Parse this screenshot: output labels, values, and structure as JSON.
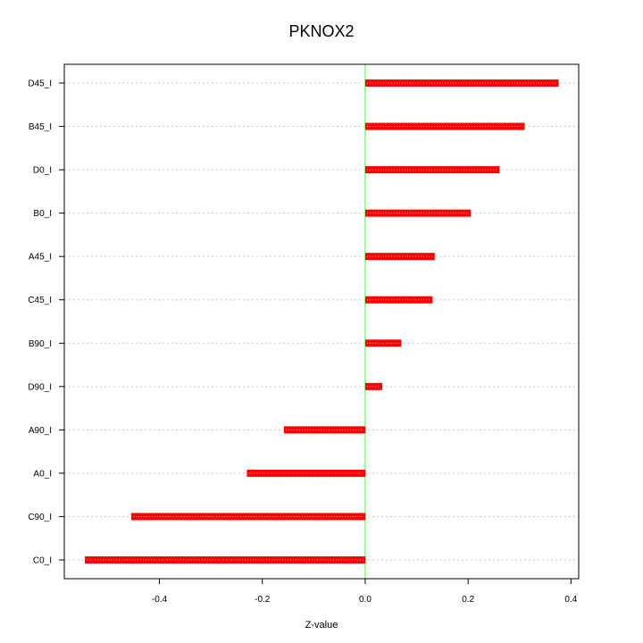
{
  "chart_data": {
    "type": "bar",
    "orientation": "horizontal",
    "title": "PKNOX2",
    "xlabel": "Z-value",
    "ylabel": "",
    "categories": [
      "D45_I",
      "B45_I",
      "D0_I",
      "B0_I",
      "A45_I",
      "C45_I",
      "B90_I",
      "D90_I",
      "A90_I",
      "A0_I",
      "C90_I",
      "C0_I"
    ],
    "values": [
      0.376,
      0.31,
      0.261,
      0.205,
      0.135,
      0.131,
      0.07,
      0.033,
      -0.158,
      -0.23,
      -0.455,
      -0.545
    ],
    "xlim": [
      -0.585,
      0.415
    ],
    "xticks": [
      -0.4,
      -0.2,
      0.0,
      0.2,
      0.4
    ],
    "xtick_labels": [
      "-0.4",
      "-0.2",
      "0.0",
      "0.2",
      "0.4"
    ],
    "grid": true,
    "reference_line": 0,
    "colors": {
      "bar": "#ff0000",
      "reference_line": "#33ff33",
      "grid": "#c8c8c8"
    }
  }
}
